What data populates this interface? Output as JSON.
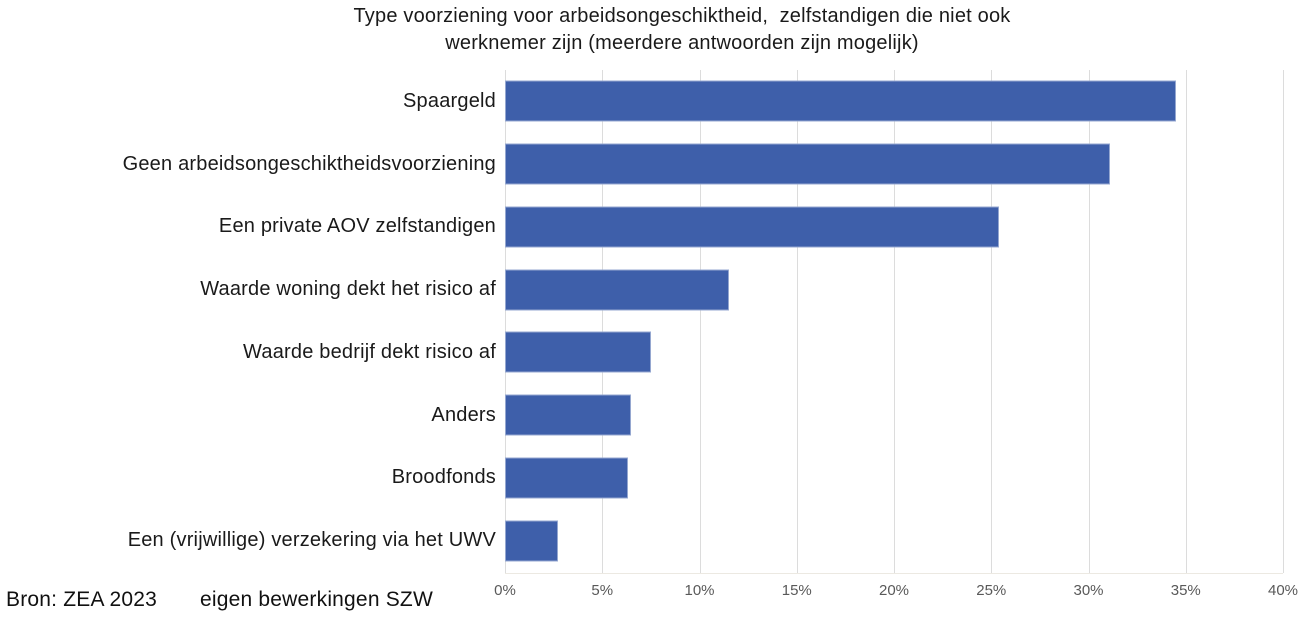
{
  "title": {
    "line1": "Type voorziening voor arbeidsongeschiktheid,  zelfstandigen die niet ook",
    "line2": "werknemer zijn (meerdere antwoorden zijn mogelijk)"
  },
  "footer": {
    "source": "Bron:  ZEA 2023",
    "note": "eigen bewerkingen SZW"
  },
  "chart_data": {
    "type": "bar",
    "orientation": "horizontal",
    "title": "Type voorziening voor arbeidsongeschiktheid, zelfstandigen die niet ook werknemer zijn (meerdere antwoorden zijn mogelijk)",
    "categories": [
      "Spaargeld",
      "Geen arbeidsongeschiktheidsvoorziening",
      "Een private AOV zelfstandigen",
      "Waarde woning dekt het risico af",
      "Waarde bedrijf dekt risico af",
      "Anders",
      "Broodfonds",
      "Een (vrijwillige) verzekering via het UWV"
    ],
    "values": [
      34.5,
      31.1,
      25.4,
      11.5,
      7.5,
      6.5,
      6.3,
      2.7
    ],
    "value_unit": "%",
    "xlabel": "",
    "ylabel": "",
    "xlim": [
      0,
      40
    ],
    "xtick_values": [
      0,
      5,
      10,
      15,
      20,
      25,
      30,
      35,
      40
    ],
    "xtick_labels": [
      "0%",
      "5%",
      "10%",
      "15%",
      "20%",
      "25%",
      "30%",
      "35%",
      "40%"
    ],
    "grid": true,
    "legend": false,
    "bar_color": "#3E5FAA",
    "gridline_color": "#DCDCDC",
    "axis_label_color": "#595959"
  }
}
